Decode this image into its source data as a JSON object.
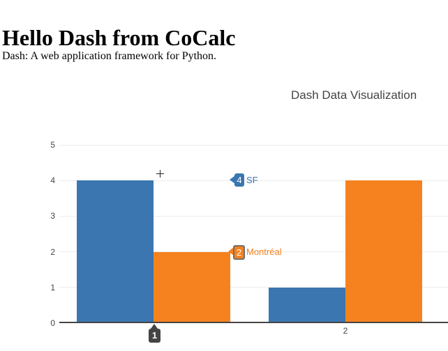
{
  "page": {
    "heading": "Hello Dash from CoCalc",
    "description": "Dash: A web application framework for Python."
  },
  "chart": {
    "title": "Dash Data Visualization",
    "colors": {
      "sf_blue": "#3b76b0",
      "montreal_orange": "#f5821f",
      "grid": "#ececec",
      "axis": "#444444",
      "hover_badge_bg": "#444444"
    },
    "y_axis": {
      "ticks": [
        0,
        1,
        2,
        3,
        4,
        5
      ]
    },
    "x_axis": {
      "ticks": [
        1,
        2
      ]
    },
    "hover": {
      "labels": [
        {
          "value": "4",
          "name": "SF"
        },
        {
          "value": "2",
          "name": "Montréal"
        }
      ],
      "x_badge": "1"
    }
  },
  "chart_data": {
    "type": "bar",
    "mode": "grouped",
    "categories": [
      1,
      2
    ],
    "series": [
      {
        "name": "SF",
        "color": "#3b76b0",
        "values": [
          4,
          1
        ]
      },
      {
        "name": "Montréal",
        "color": "#f5821f",
        "values": [
          2,
          4
        ]
      }
    ],
    "title": "Dash Data Visualization",
    "xlabel": "",
    "ylabel": "",
    "ylim": [
      0,
      5
    ],
    "xlim": [
      0.5,
      2.5
    ],
    "grid": true,
    "legend": "none",
    "hover_state": {
      "x": 1,
      "tooltips": [
        {
          "series": "SF",
          "value": 4
        },
        {
          "series": "Montréal",
          "value": 2
        }
      ],
      "x_axis_badge": "1"
    }
  }
}
